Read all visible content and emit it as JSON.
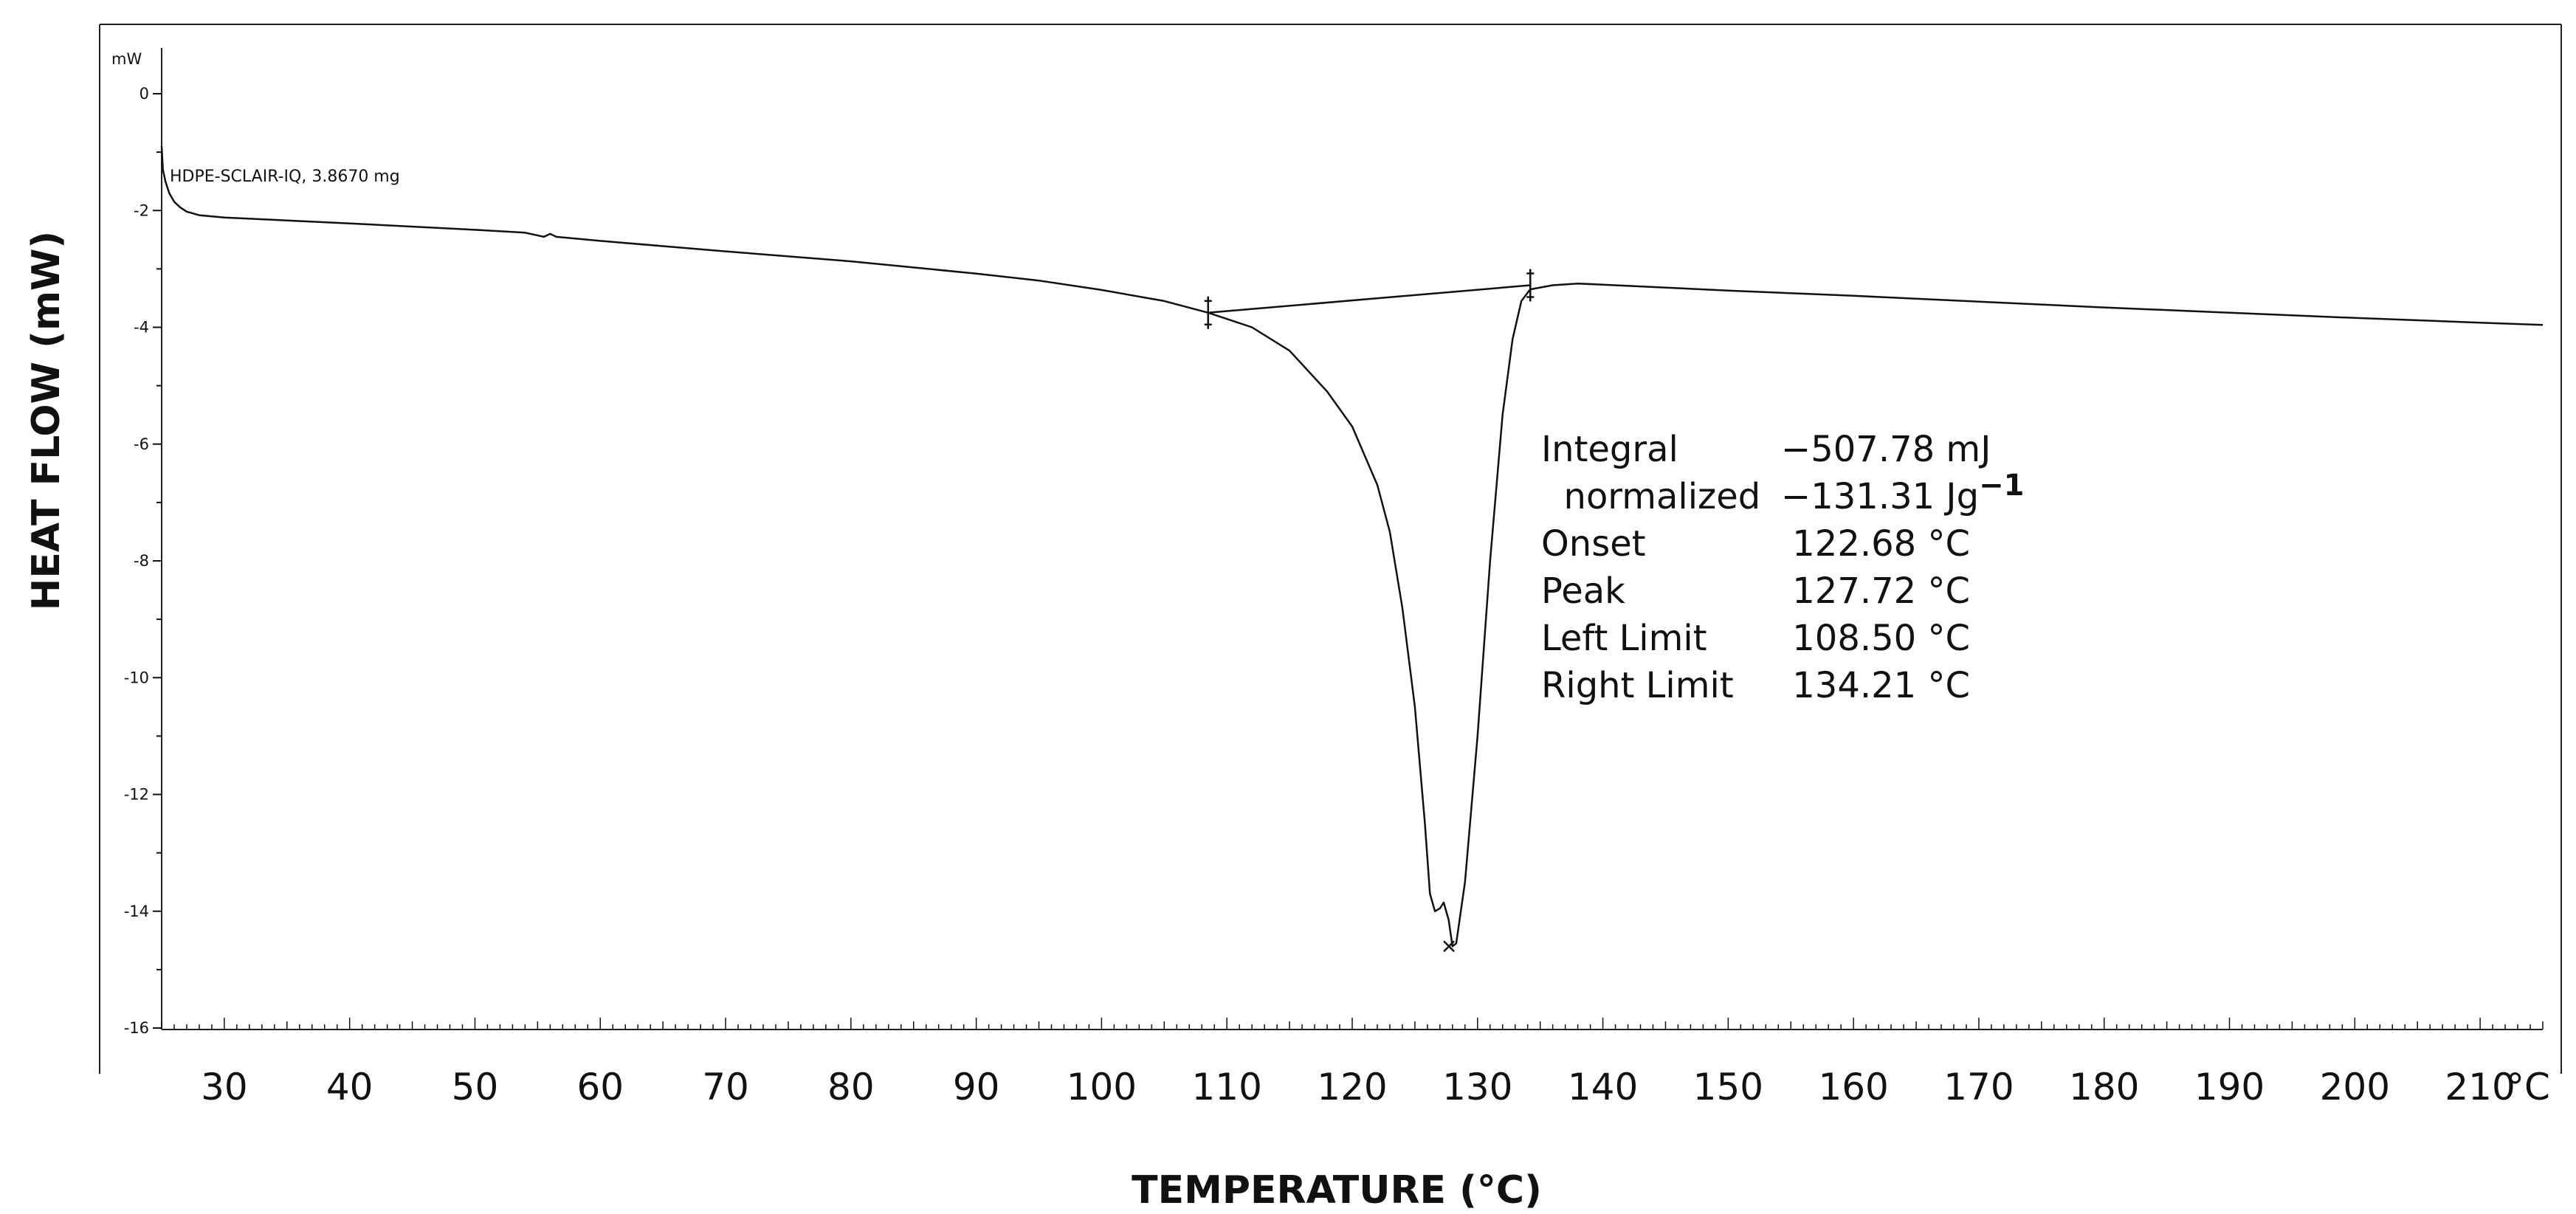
{
  "chart_data": {
    "type": "line",
    "title": "",
    "xlabel": "TEMPERATURE (°C)",
    "ylabel": "HEAT FLOW (mW)",
    "y_unit_label": "mW",
    "x_unit_label": "°C",
    "xlim": [
      25,
      215
    ],
    "ylim": [
      -16,
      0.5
    ],
    "x_ticks": [
      30,
      40,
      50,
      60,
      70,
      80,
      90,
      100,
      110,
      120,
      130,
      140,
      150,
      160,
      170,
      180,
      190,
      200,
      210
    ],
    "y_ticks": [
      0,
      -2,
      -4,
      -6,
      -8,
      -10,
      -12,
      -14,
      -16
    ],
    "x_tick_labels": [
      "30",
      "40",
      "50",
      "60",
      "70",
      "80",
      "90",
      "100",
      "110",
      "120",
      "130",
      "140",
      "150",
      "160",
      "170",
      "180",
      "190",
      "200",
      "210"
    ],
    "y_tick_labels": [
      "0",
      "-2",
      "-4",
      "-6",
      "-8",
      "-10",
      "-12",
      "-14",
      "-16"
    ],
    "grid": false,
    "series": [
      {
        "name": "HDPE-SCLAIR-IQ, 3.8670 mg",
        "points": [
          [
            25.0,
            -0.9
          ],
          [
            25.1,
            -1.3
          ],
          [
            25.3,
            -1.5
          ],
          [
            25.6,
            -1.7
          ],
          [
            26.0,
            -1.85
          ],
          [
            26.5,
            -1.95
          ],
          [
            27.0,
            -2.02
          ],
          [
            28.0,
            -2.08
          ],
          [
            30.0,
            -2.12
          ],
          [
            40.0,
            -2.22
          ],
          [
            50.0,
            -2.33
          ],
          [
            54.0,
            -2.38
          ],
          [
            55.5,
            -2.45
          ],
          [
            56.0,
            -2.4
          ],
          [
            56.5,
            -2.45
          ],
          [
            60.0,
            -2.52
          ],
          [
            70.0,
            -2.7
          ],
          [
            80.0,
            -2.87
          ],
          [
            90.0,
            -3.08
          ],
          [
            95.0,
            -3.2
          ],
          [
            100.0,
            -3.36
          ],
          [
            105.0,
            -3.55
          ],
          [
            108.5,
            -3.75
          ],
          [
            112.0,
            -4.0
          ],
          [
            115.0,
            -4.4
          ],
          [
            118.0,
            -5.1
          ],
          [
            120.0,
            -5.7
          ],
          [
            122.0,
            -6.7
          ],
          [
            123.0,
            -7.5
          ],
          [
            124.0,
            -8.8
          ],
          [
            125.0,
            -10.5
          ],
          [
            125.8,
            -12.5
          ],
          [
            126.2,
            -13.7
          ],
          [
            126.6,
            -14.0
          ],
          [
            127.0,
            -13.95
          ],
          [
            127.3,
            -13.85
          ],
          [
            127.7,
            -14.15
          ],
          [
            128.0,
            -14.6
          ],
          [
            128.3,
            -14.55
          ],
          [
            129.0,
            -13.5
          ],
          [
            130.0,
            -11.0
          ],
          [
            131.0,
            -8.0
          ],
          [
            132.0,
            -5.5
          ],
          [
            132.8,
            -4.2
          ],
          [
            133.5,
            -3.55
          ],
          [
            134.2,
            -3.35
          ],
          [
            136.0,
            -3.28
          ],
          [
            138.0,
            -3.25
          ],
          [
            140.0,
            -3.27
          ],
          [
            150.0,
            -3.37
          ],
          [
            160.0,
            -3.46
          ],
          [
            170.0,
            -3.56
          ],
          [
            180.0,
            -3.66
          ],
          [
            190.0,
            -3.75
          ],
          [
            200.0,
            -3.84
          ],
          [
            210.0,
            -3.92
          ],
          [
            215.0,
            -3.96
          ]
        ]
      }
    ],
    "integration_baseline": [
      [
        108.5,
        -3.75
      ],
      [
        134.21,
        -3.28
      ]
    ],
    "markers": [
      {
        "label": "left-limit",
        "x": 108.5,
        "y": -3.75
      },
      {
        "label": "right-limit",
        "x": 134.21,
        "y": -3.28
      },
      {
        "label": "peak",
        "x": 127.72,
        "y": -14.6
      }
    ]
  },
  "curve_label": "HDPE-SCLAIR-IQ, 3.8670 mg",
  "results": [
    {
      "label": "Integral",
      "value": "−507.78 mJ",
      "sup": ""
    },
    {
      "label": "  normalized",
      "value": "−131.31 Jg",
      "sup": "−1"
    },
    {
      "label": "Onset",
      "value": " 122.68 °C",
      "sup": ""
    },
    {
      "label": "Peak",
      "value": " 127.72 °C",
      "sup": ""
    },
    {
      "label": "Left Limit",
      "value": " 108.50 °C",
      "sup": ""
    },
    {
      "label": "Right Limit",
      "value": " 134.21 °C",
      "sup": ""
    }
  ],
  "colors": {
    "line": "#111111",
    "frame": "#222222",
    "background": "#ffffff"
  }
}
